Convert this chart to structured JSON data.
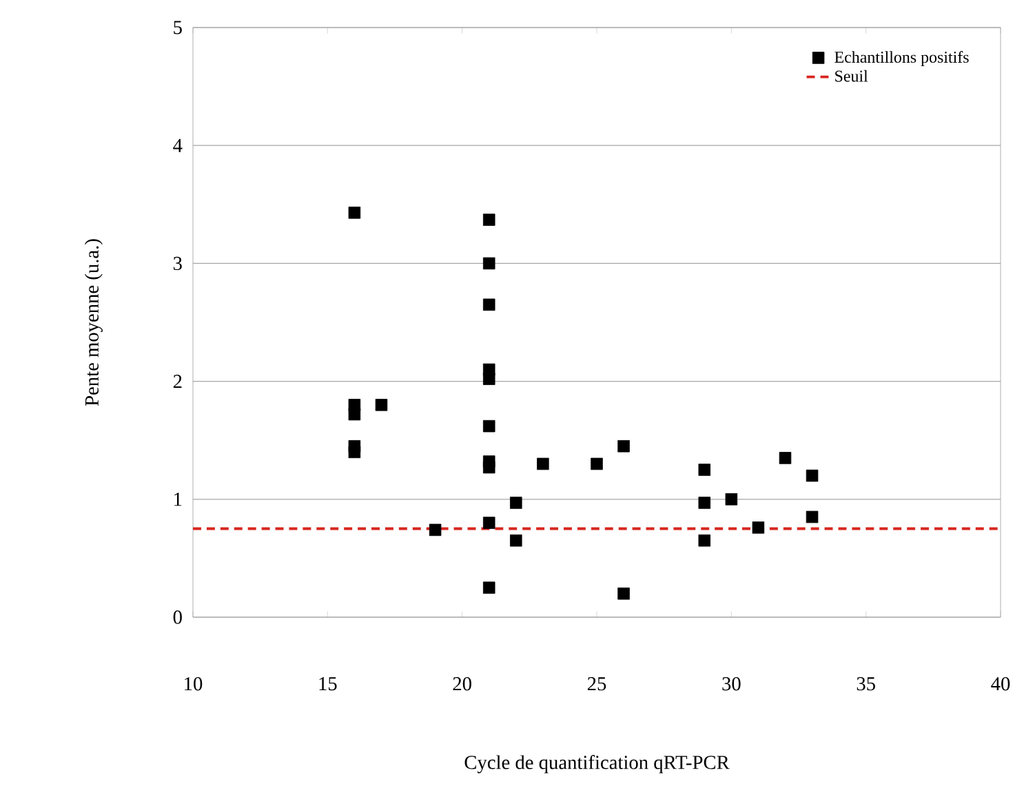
{
  "chart_data": {
    "type": "scatter",
    "xlabel": "Cycle de quantification qRT-PCR",
    "ylabel": "Pente moyenne (u.a.)",
    "xlim": [
      10,
      40
    ],
    "xticks": [
      10,
      15,
      20,
      25,
      30,
      35,
      40
    ],
    "ylim": [
      0,
      5
    ],
    "yticks": [
      0,
      1,
      2,
      3,
      4,
      5
    ],
    "grid": "y",
    "legend": "top right",
    "marker": "square",
    "series": [
      {
        "name": "Echantillons positifs",
        "color": "#000000",
        "x": [
          16,
          16,
          16,
          16,
          16,
          17,
          19,
          21,
          21,
          21,
          21,
          21,
          21,
          21,
          21,
          21,
          21,
          22,
          22,
          23,
          25,
          26,
          26,
          29,
          29,
          29,
          30,
          31,
          32,
          33,
          33
        ],
        "values": [
          3.43,
          1.8,
          1.72,
          1.45,
          1.4,
          1.8,
          0.74,
          3.37,
          3.0,
          2.65,
          2.1,
          2.02,
          1.62,
          1.32,
          1.27,
          0.8,
          0.25,
          0.97,
          0.65,
          1.3,
          1.3,
          1.45,
          0.2,
          1.25,
          0.97,
          0.65,
          1.0,
          0.76,
          1.35,
          1.2,
          0.85
        ]
      }
    ],
    "ref_lines": [
      {
        "axis": "y",
        "value": 0.75,
        "label": "Seuil",
        "color": "#d7261e",
        "line_style": "dashed"
      }
    ]
  }
}
